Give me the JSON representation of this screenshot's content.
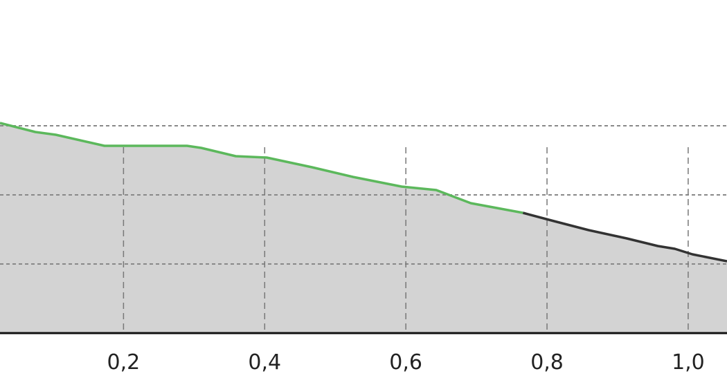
{
  "chart_data": {
    "type": "area",
    "title": "",
    "xlabel": "",
    "ylabel": "",
    "xlim": [
      0.025,
      1.055
    ],
    "ylim": [
      0,
      4.82
    ],
    "grid": true,
    "x_ticks": [
      0.2,
      0.4,
      0.6,
      0.8,
      1.0
    ],
    "x_tick_labels": [
      "0,2",
      "0,4",
      "0,6",
      "0,8",
      "1,0"
    ],
    "y_gridlines": [
      1,
      2,
      3
    ],
    "colors": {
      "fill": "#d3d3d3",
      "highlight_line": "#5cb85c",
      "line": "#333333",
      "grid": "#888888"
    },
    "series": [
      {
        "segment": "highlighted",
        "x": [
          0.025,
          0.075,
          0.104,
          0.173,
          0.29,
          0.31,
          0.359,
          0.403,
          0.467,
          0.525,
          0.594,
          0.643,
          0.692,
          0.766
        ],
        "y": [
          3.04,
          2.91,
          2.87,
          2.71,
          2.71,
          2.68,
          2.56,
          2.54,
          2.4,
          2.26,
          2.12,
          2.07,
          1.88,
          1.74
        ]
      },
      {
        "segment": "normal",
        "x": [
          0.766,
          0.81,
          0.859,
          0.913,
          0.957,
          0.981,
          1.006,
          1.055
        ],
        "y": [
          1.74,
          1.62,
          1.49,
          1.37,
          1.26,
          1.22,
          1.14,
          1.04
        ]
      }
    ]
  }
}
